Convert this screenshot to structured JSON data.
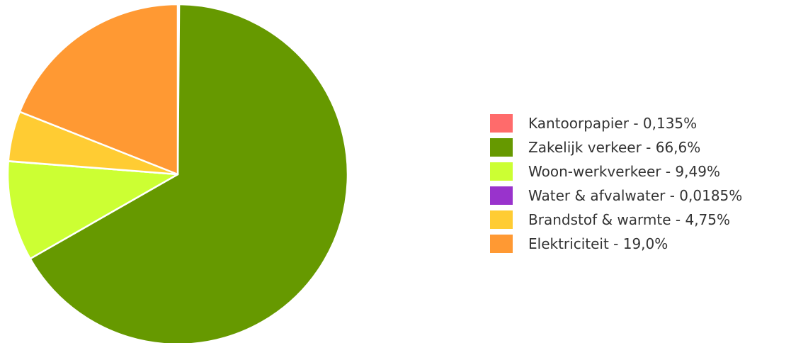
{
  "chart_data": {
    "type": "pie",
    "title": "",
    "legend_position": "right",
    "slices": [
      {
        "name": "Kantoorpapier",
        "value": 0.135,
        "color": "#ff6b6b",
        "label": "Kantoorpapier - 0,135%"
      },
      {
        "name": "Zakelijk verkeer",
        "value": 66.6,
        "color": "#669900",
        "label": "Zakelijk verkeer - 66,6%"
      },
      {
        "name": "Woon-werkverkeer",
        "value": 9.49,
        "color": "#ccff33",
        "label": "Woon-werkverkeer - 9,49%"
      },
      {
        "name": "Water & afvalwater",
        "value": 0.0185,
        "color": "#9933cc",
        "label": "Water & afvalwater - 0,0185%"
      },
      {
        "name": "Brandstof & warmte",
        "value": 4.75,
        "color": "#ffcc33",
        "label": "Brandstof & warmte - 4,75%"
      },
      {
        "name": "Elektriciteit",
        "value": 19.0,
        "color": "#ff9933",
        "label": "Elektriciteit - 19,0%"
      }
    ]
  }
}
